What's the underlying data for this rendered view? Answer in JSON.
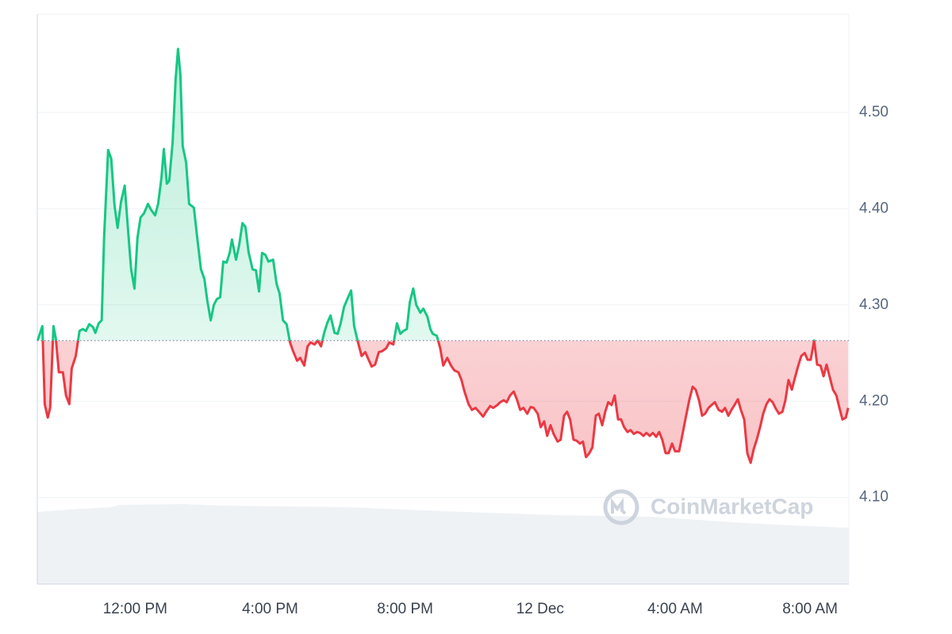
{
  "chart_data": {
    "type": "area",
    "x": [
      9.11,
      9.25,
      9.32,
      9.41,
      9.48,
      9.58,
      9.65,
      9.74,
      9.86,
      9.95,
      10.05,
      10.12,
      10.24,
      10.35,
      10.45,
      10.54,
      10.64,
      10.75,
      10.82,
      10.92,
      11.01,
      11.08,
      11.2,
      11.29,
      11.39,
      11.48,
      11.58,
      11.69,
      11.79,
      11.88,
      11.98,
      12.07,
      12.16,
      12.26,
      12.38,
      12.47,
      12.59,
      12.68,
      12.78,
      12.85,
      12.94,
      13.01,
      13.11,
      13.2,
      13.27,
      13.34,
      13.41,
      13.51,
      13.6,
      13.74,
      13.84,
      13.95,
      14.05,
      14.14,
      14.24,
      14.33,
      14.42,
      14.52,
      14.61,
      14.71,
      14.8,
      14.87,
      14.99,
      15.08,
      15.18,
      15.27,
      15.36,
      15.48,
      15.58,
      15.67,
      15.76,
      15.86,
      15.95,
      16.09,
      16.19,
      16.28,
      16.38,
      16.49,
      16.59,
      16.68,
      16.8,
      16.89,
      17.01,
      17.11,
      17.2,
      17.32,
      17.41,
      17.51,
      17.6,
      17.69,
      17.79,
      17.91,
      18.0,
      18.09,
      18.19,
      18.31,
      18.4,
      18.49,
      18.59,
      18.71,
      18.82,
      18.92,
      19.01,
      19.11,
      19.22,
      19.32,
      19.44,
      19.53,
      19.65,
      19.76,
      19.86,
      19.95,
      20.05,
      20.14,
      20.24,
      20.33,
      20.45,
      20.54,
      20.66,
      20.75,
      20.82,
      20.94,
      21.04,
      21.13,
      21.25,
      21.36,
      21.46,
      21.58,
      21.67,
      21.76,
      21.88,
      21.98,
      22.09,
      22.19,
      22.31,
      22.4,
      22.52,
      22.61,
      22.73,
      22.82,
      22.92,
      23.01,
      23.11,
      23.22,
      23.32,
      23.41,
      23.51,
      23.62,
      23.72,
      23.81,
      23.93,
      24.02,
      24.12,
      24.21,
      24.31,
      24.4,
      24.52,
      24.61,
      24.71,
      24.8,
      24.89,
      24.99,
      25.08,
      25.18,
      25.27,
      25.36,
      25.46,
      25.55,
      25.65,
      25.74,
      25.84,
      25.93,
      26.02,
      26.12,
      26.21,
      26.31,
      26.4,
      26.49,
      26.59,
      26.68,
      26.78,
      26.87,
      26.96,
      27.06,
      27.15,
      27.25,
      27.34,
      27.44,
      27.53,
      27.62,
      27.72,
      27.81,
      27.91,
      28.0,
      28.12,
      28.21,
      28.31,
      28.42,
      28.52,
      28.61,
      28.71,
      28.8,
      28.89,
      28.99,
      29.08,
      29.18,
      29.29,
      29.39,
      29.48,
      29.58,
      29.67,
      29.76,
      29.86,
      29.95,
      30.05,
      30.14,
      30.24,
      30.33,
      30.42,
      30.52,
      30.61,
      30.71,
      30.8,
      30.89,
      30.99,
      31.08,
      31.18,
      31.27,
      31.36,
      31.46,
      31.55,
      31.65,
      31.74,
      31.84,
      31.93,
      32.02,
      32.12,
      32.21,
      32.31,
      32.4,
      32.49,
      32.59,
      32.68,
      32.78,
      32.87,
      32.96,
      33.06,
      33.13
    ],
    "values": [
      4.263,
      4.278,
      4.197,
      4.183,
      4.193,
      4.278,
      4.265,
      4.23,
      4.23,
      4.206,
      4.197,
      4.234,
      4.247,
      4.273,
      4.275,
      4.273,
      4.28,
      4.277,
      4.271,
      4.281,
      4.284,
      4.37,
      4.461,
      4.452,
      4.403,
      4.38,
      4.407,
      4.424,
      4.378,
      4.337,
      4.317,
      4.37,
      4.391,
      4.395,
      4.405,
      4.399,
      4.393,
      4.405,
      4.432,
      4.462,
      4.426,
      4.429,
      4.469,
      4.535,
      4.566,
      4.539,
      4.465,
      4.448,
      4.405,
      4.401,
      4.37,
      4.337,
      4.327,
      4.304,
      4.284,
      4.3,
      4.306,
      4.308,
      4.345,
      4.344,
      4.354,
      4.368,
      4.347,
      4.362,
      4.385,
      4.381,
      4.355,
      4.337,
      4.336,
      4.314,
      4.354,
      4.352,
      4.345,
      4.347,
      4.322,
      4.312,
      4.284,
      4.28,
      4.261,
      4.252,
      4.242,
      4.245,
      4.237,
      4.257,
      4.261,
      4.259,
      4.263,
      4.257,
      4.271,
      4.281,
      4.289,
      4.271,
      4.27,
      4.281,
      4.298,
      4.308,
      4.315,
      4.278,
      4.263,
      4.247,
      4.251,
      4.243,
      4.236,
      4.238,
      4.251,
      4.252,
      4.255,
      4.261,
      4.259,
      4.281,
      4.27,
      4.273,
      4.275,
      4.303,
      4.317,
      4.3,
      4.292,
      4.296,
      4.288,
      4.275,
      4.27,
      4.268,
      4.255,
      4.237,
      4.245,
      4.237,
      4.232,
      4.23,
      4.222,
      4.21,
      4.197,
      4.191,
      4.193,
      4.189,
      4.184,
      4.189,
      4.195,
      4.193,
      4.196,
      4.199,
      4.201,
      4.199,
      4.206,
      4.21,
      4.201,
      4.191,
      4.193,
      4.187,
      4.194,
      4.193,
      4.187,
      4.173,
      4.179,
      4.164,
      4.175,
      4.166,
      4.158,
      4.16,
      4.185,
      4.189,
      4.181,
      4.16,
      4.159,
      4.156,
      4.158,
      4.142,
      4.146,
      4.152,
      4.185,
      4.187,
      4.175,
      4.189,
      4.199,
      4.196,
      4.206,
      4.181,
      4.181,
      4.173,
      4.168,
      4.17,
      4.166,
      4.168,
      4.167,
      4.164,
      4.167,
      4.164,
      4.167,
      4.163,
      4.168,
      4.16,
      4.146,
      4.146,
      4.156,
      4.148,
      4.148,
      4.164,
      4.182,
      4.201,
      4.215,
      4.212,
      4.201,
      4.185,
      4.187,
      4.193,
      4.196,
      4.199,
      4.191,
      4.189,
      4.193,
      4.185,
      4.191,
      4.196,
      4.202,
      4.191,
      4.181,
      4.146,
      4.136,
      4.15,
      4.16,
      4.173,
      4.187,
      4.197,
      4.202,
      4.199,
      4.192,
      4.187,
      4.189,
      4.201,
      4.222,
      4.212,
      4.224,
      4.237,
      4.247,
      4.25,
      4.243,
      4.243,
      4.263,
      4.238,
      4.237,
      4.226,
      4.238,
      4.224,
      4.212,
      4.206,
      4.193,
      4.181,
      4.183,
      4.193
    ],
    "baseline": 4.263,
    "up_color": "#16c784",
    "down_color": "#ea3943",
    "xlim": [
      9.1,
      33.15
    ],
    "xticks": [
      {
        "value": 12,
        "label": "12:00 PM"
      },
      {
        "value": 16,
        "label": "4:00 PM"
      },
      {
        "value": 20,
        "label": "8:00 PM"
      },
      {
        "value": 24,
        "label": "12 Dec"
      },
      {
        "value": 28,
        "label": "4:00 AM"
      },
      {
        "value": 32,
        "label": "8:00 AM"
      }
    ],
    "ylim": [
      4.01,
      4.602
    ],
    "yticks": [
      {
        "value": 4.1,
        "label": "4.10"
      },
      {
        "value": 4.2,
        "label": "4.20"
      },
      {
        "value": 4.3,
        "label": "4.30"
      },
      {
        "value": 4.4,
        "label": "4.40"
      },
      {
        "value": 4.5,
        "label": "4.50"
      }
    ],
    "grid": true,
    "watermark": "CoinMarketCap"
  }
}
